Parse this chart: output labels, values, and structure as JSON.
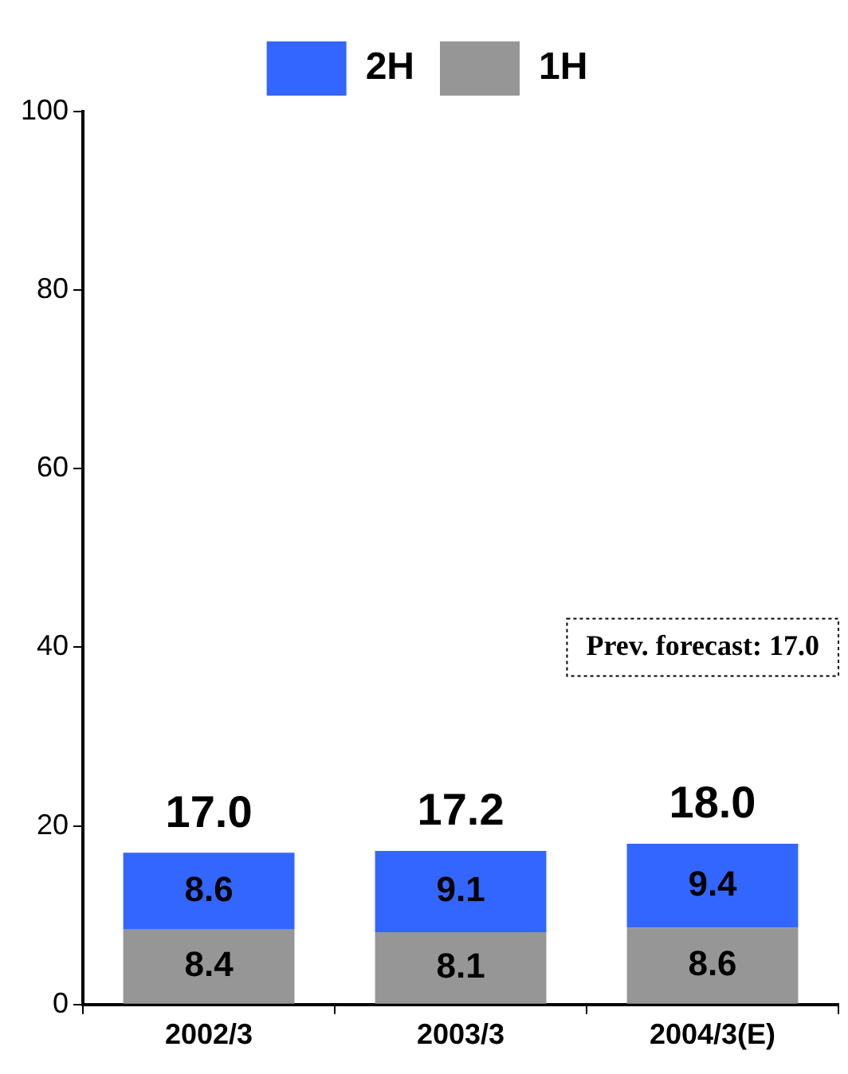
{
  "chart_data": {
    "type": "bar",
    "stacked": true,
    "categories": [
      "2002/3",
      "2003/3",
      "2004/3(E)"
    ],
    "series": [
      {
        "name": "1H",
        "color": "#969696",
        "values": [
          8.4,
          8.1,
          8.6
        ]
      },
      {
        "name": "2H",
        "color": "#3366ff",
        "values": [
          8.6,
          9.1,
          9.4
        ]
      }
    ],
    "data_labels": true,
    "totals": [
      "17.0",
      "17.2",
      "18.0"
    ],
    "ylim": [
      0,
      100
    ],
    "yticks": [
      0,
      20,
      40,
      60,
      80,
      100
    ],
    "grid": false,
    "legend": "top",
    "annotations": [
      "Prev. forecast: 17.0"
    ]
  }
}
